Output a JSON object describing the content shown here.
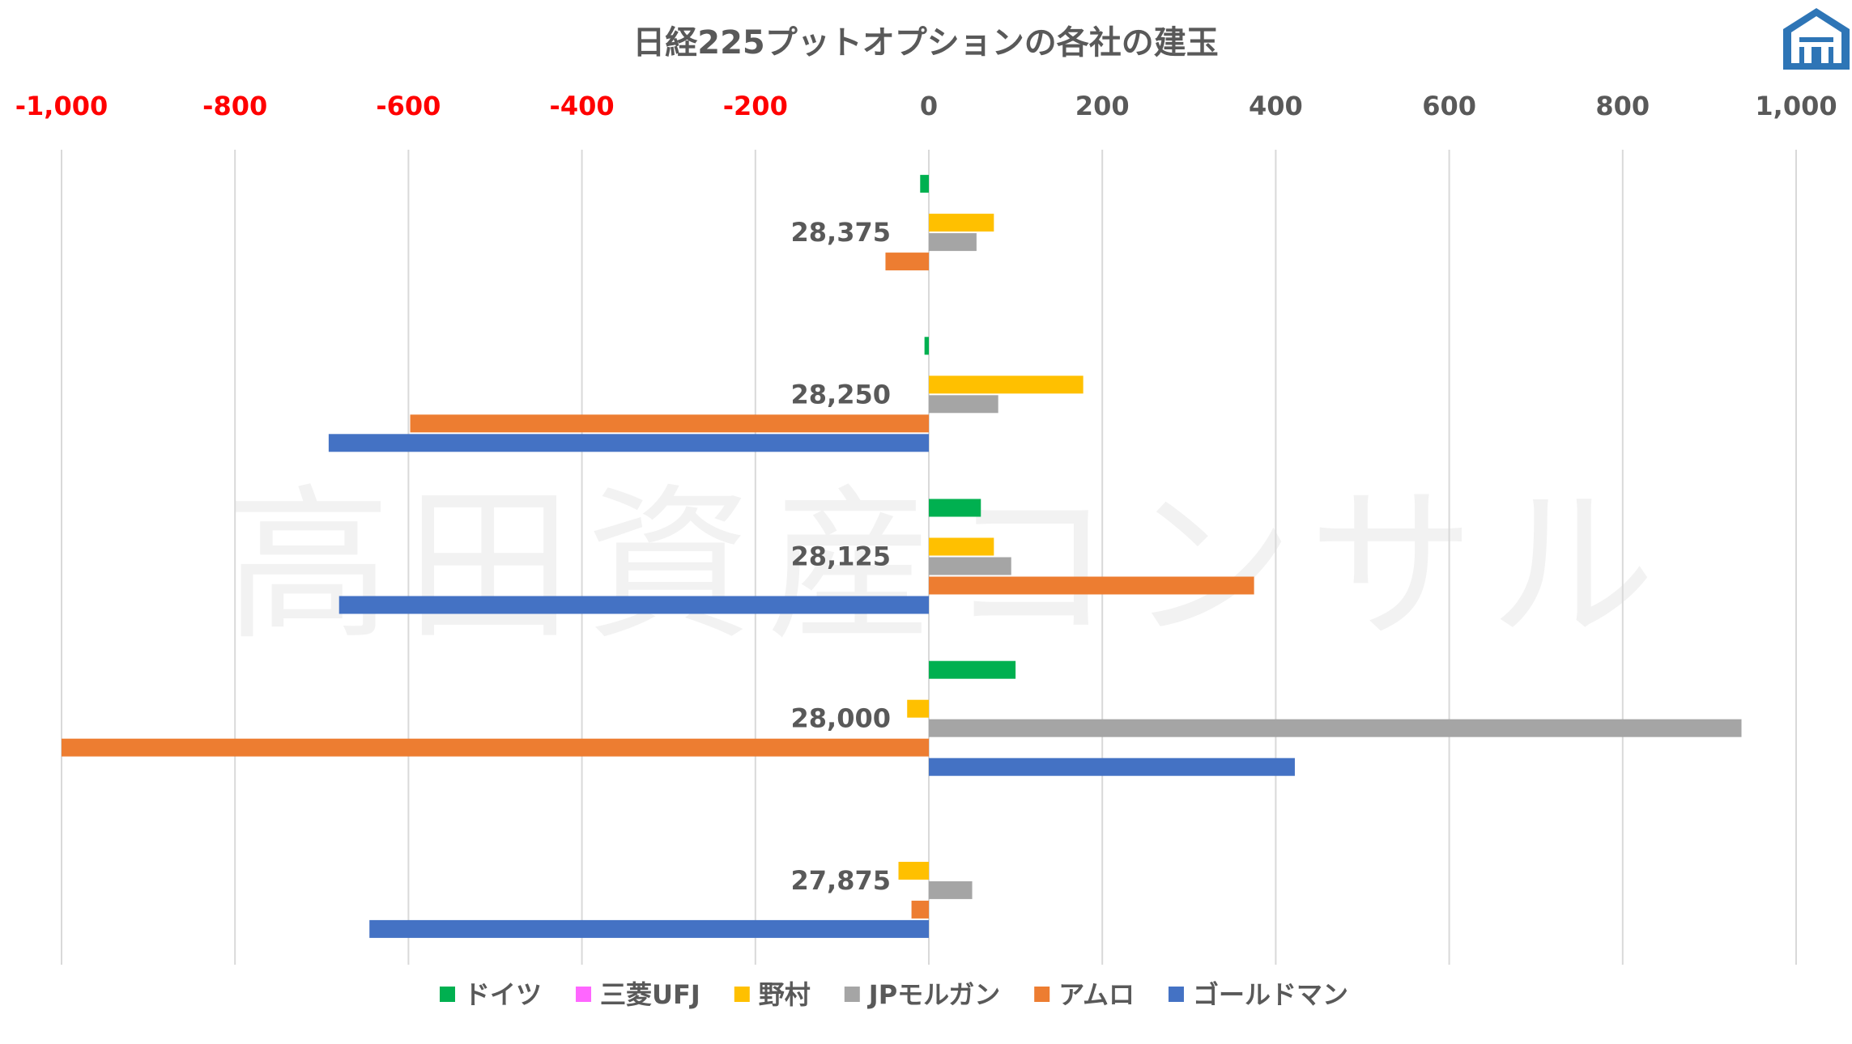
{
  "title": "日経225プットオプションの各社の建玉",
  "watermark": "高田資産コンサル",
  "logo": "logo-icon",
  "colors": {
    "axis_negative": "#ff0000",
    "axis_positive": "#595959",
    "grid": "#d9d9d9",
    "text": "#595959",
    "watermark": "#f2f2f2",
    "logo": "#2e75b6"
  },
  "chart_data": {
    "type": "bar",
    "orientation": "horizontal",
    "xlim": [
      -1000,
      1000
    ],
    "x_ticks": [
      {
        "value": -1000,
        "label": "-1,000"
      },
      {
        "value": -800,
        "label": "-800"
      },
      {
        "value": -600,
        "label": "-600"
      },
      {
        "value": -400,
        "label": "-400"
      },
      {
        "value": -200,
        "label": "-200"
      },
      {
        "value": 0,
        "label": "0"
      },
      {
        "value": 200,
        "label": "200"
      },
      {
        "value": 400,
        "label": "400"
      },
      {
        "value": 600,
        "label": "600"
      },
      {
        "value": 800,
        "label": "800"
      },
      {
        "value": 1000,
        "label": "1,000"
      }
    ],
    "grid": true,
    "legend_position": "bottom",
    "categories": [
      "28,375",
      "28,250",
      "28,125",
      "28,000",
      "27,875"
    ],
    "series": [
      {
        "name": "ドイツ",
        "color": "#00b050",
        "values": [
          -10,
          -5,
          60,
          100,
          0
        ]
      },
      {
        "name": "三菱UFJ",
        "color": "#ff66ff",
        "values": [
          0,
          0,
          0,
          0,
          0
        ]
      },
      {
        "name": "野村",
        "color": "#ffc000",
        "values": [
          75,
          178,
          75,
          -25,
          -35
        ]
      },
      {
        "name": "JPモルガン",
        "color": "#a5a5a5",
        "values": [
          55,
          80,
          95,
          937,
          50
        ]
      },
      {
        "name": "アムロ",
        "color": "#ed7d31",
        "values": [
          -50,
          -598,
          375,
          -1000,
          -20
        ]
      },
      {
        "name": "ゴールドマン",
        "color": "#4472c4",
        "values": [
          0,
          -692,
          -680,
          422,
          -645
        ]
      }
    ]
  }
}
